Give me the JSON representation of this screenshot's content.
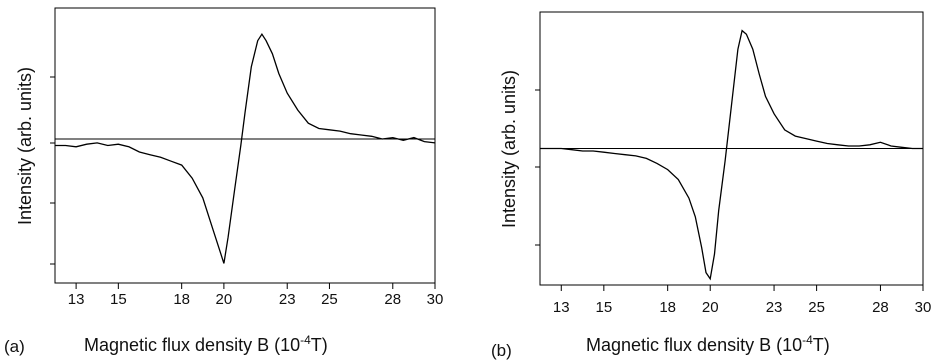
{
  "chart_data": [
    {
      "type": "line",
      "panel_label": "(a)",
      "xlabel_main": "Magnetic flux density B (10",
      "xlabel_exp": "-4",
      "xlabel_unit": "T)",
      "ylabel": "Intensity (arb. units)",
      "xlim": [
        12.0,
        30.0
      ],
      "ylim": [
        -1.1,
        1.0
      ],
      "xticks": [
        "13",
        "15",
        "18",
        "20",
        "23",
        "25",
        "28",
        "30"
      ],
      "baseline": 0,
      "x": [
        12.0,
        12.5,
        13.0,
        13.5,
        14.0,
        14.5,
        15.0,
        15.5,
        16.0,
        16.5,
        17.0,
        17.5,
        18.0,
        18.5,
        19.0,
        19.5,
        19.8,
        20.0,
        20.2,
        20.5,
        20.8,
        21.0,
        21.3,
        21.6,
        21.8,
        22.0,
        22.3,
        22.6,
        23.0,
        23.5,
        24.0,
        24.5,
        25.0,
        25.5,
        26.0,
        26.5,
        27.0,
        27.5,
        28.0,
        28.5,
        29.0,
        29.5,
        30.0
      ],
      "y": [
        -0.05,
        -0.05,
        -0.06,
        -0.04,
        -0.03,
        -0.05,
        -0.04,
        -0.06,
        -0.1,
        -0.12,
        -0.14,
        -0.17,
        -0.2,
        -0.3,
        -0.45,
        -0.7,
        -0.85,
        -0.95,
        -0.75,
        -0.4,
        -0.05,
        0.2,
        0.55,
        0.75,
        0.8,
        0.75,
        0.65,
        0.5,
        0.35,
        0.22,
        0.12,
        0.08,
        0.07,
        0.06,
        0.04,
        0.03,
        0.02,
        0.0,
        0.01,
        -0.01,
        0.01,
        -0.02,
        -0.03
      ]
    },
    {
      "type": "line",
      "panel_label": "(b)",
      "xlabel_main": "Magnetic flux density B (10",
      "xlabel_exp": "-4",
      "xlabel_unit": "T)",
      "ylabel": "Intensity (arb. units)",
      "xlim": [
        12.0,
        30.0
      ],
      "ylim": [
        -1.1,
        1.1
      ],
      "xticks": [
        "13",
        "15",
        "18",
        "20",
        "23",
        "25",
        "28",
        "30"
      ],
      "baseline": 0,
      "x": [
        12.0,
        12.5,
        13.0,
        13.5,
        14.0,
        14.5,
        15.0,
        15.5,
        16.0,
        16.5,
        17.0,
        17.5,
        18.0,
        18.5,
        19.0,
        19.3,
        19.6,
        19.8,
        20.0,
        20.2,
        20.4,
        20.7,
        21.0,
        21.3,
        21.5,
        21.7,
        22.0,
        22.3,
        22.6,
        23.0,
        23.5,
        24.0,
        24.5,
        25.0,
        25.5,
        26.0,
        26.5,
        27.0,
        27.5,
        28.0,
        28.5,
        29.0,
        29.5,
        30.0
      ],
      "y": [
        0.0,
        0.0,
        0.0,
        -0.01,
        -0.02,
        -0.02,
        -0.03,
        -0.04,
        -0.05,
        -0.06,
        -0.08,
        -0.12,
        -0.17,
        -0.25,
        -0.4,
        -0.55,
        -0.8,
        -1.0,
        -1.05,
        -0.85,
        -0.5,
        -0.1,
        0.35,
        0.8,
        0.95,
        0.92,
        0.8,
        0.6,
        0.42,
        0.28,
        0.15,
        0.1,
        0.08,
        0.06,
        0.04,
        0.03,
        0.02,
        0.02,
        0.03,
        0.05,
        0.02,
        0.01,
        0.0,
        0.0
      ]
    }
  ]
}
